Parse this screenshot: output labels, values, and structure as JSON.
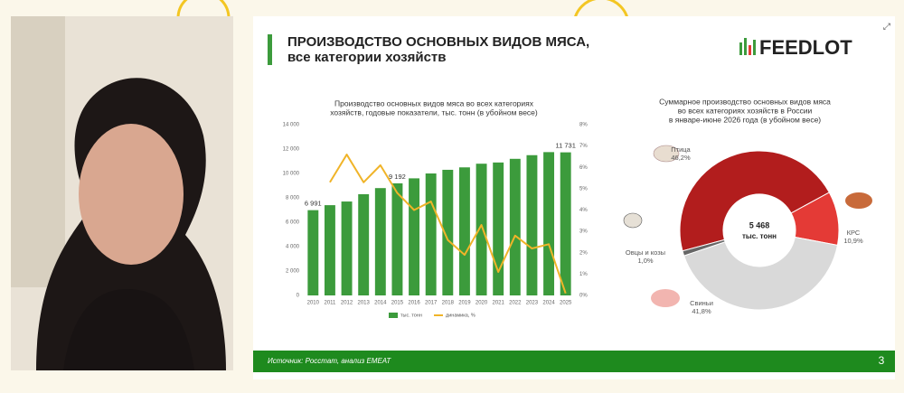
{
  "slide": {
    "title": [
      "ПРОИЗВОДСТВО ОСНОВНЫХ ВИДОВ МЯСА,",
      "все категории хозяйств"
    ],
    "logo": "FEEDLOT",
    "source": "Источник: Росстат, анализ ЕМЕАТ",
    "page": "3"
  },
  "chart_data": [
    {
      "type": "bar",
      "title": [
        "Производство основных видов мяса во всех категориях",
        "хозяйств, годовые показатели, тыс. тонн (в убойном весе)"
      ],
      "categories": [
        "2010",
        "2011",
        "2012",
        "2013",
        "2014",
        "2015",
        "2016",
        "2017",
        "2018",
        "2019",
        "2020",
        "2021",
        "2022",
        "2023",
        "2024",
        "2025"
      ],
      "series": [
        {
          "name": "тыс. тонн",
          "color": "#3c9b3c",
          "values": [
            6991,
            7400,
            7700,
            8300,
            8800,
            9192,
            9600,
            10000,
            10300,
            10500,
            10800,
            10900,
            11200,
            11500,
            11750,
            11731
          ],
          "value_labels": [
            "6 991",
            null,
            null,
            null,
            null,
            "9 192",
            null,
            null,
            null,
            null,
            null,
            null,
            null,
            null,
            null,
            "11 731"
          ]
        },
        {
          "name": "динамика, %",
          "color": "#f0b429",
          "type": "line",
          "axis": "y2",
          "values": [
            null,
            5.3,
            6.6,
            5.3,
            6.1,
            4.8,
            4.0,
            4.4,
            2.6,
            1.9,
            3.3,
            1.1,
            2.8,
            2.2,
            2.4,
            0.1
          ]
        }
      ],
      "ylim": [
        0,
        14000
      ],
      "yticks": [
        0,
        {
          "value": 2000,
          "label": "2 000"
        },
        {
          "value": 4000,
          "label": "4 000"
        },
        {
          "value": 6000,
          "label": "6 000"
        },
        {
          "value": 8000,
          "label": "8 000"
        },
        {
          "value": 10000,
          "label": "10 000"
        },
        {
          "value": 12000,
          "label": "12 000"
        },
        {
          "value": 14000,
          "label": "14 000"
        }
      ],
      "y2lim": [
        0,
        8
      ],
      "y2ticks": [
        {
          "value": 0,
          "label": "0%"
        },
        {
          "value": 1,
          "label": "1%"
        },
        {
          "value": 2,
          "label": "2%"
        },
        {
          "value": 3,
          "label": "3%"
        },
        {
          "value": 4,
          "label": "4%"
        },
        {
          "value": 5,
          "label": "5%"
        },
        {
          "value": 6,
          "label": "6%"
        },
        {
          "value": 7,
          "label": "7%"
        },
        {
          "value": 8,
          "label": "8%"
        }
      ],
      "legend": "bottom"
    },
    {
      "type": "pie",
      "title": [
        "Суммарное производство основных видов мяса",
        "во всех категориях хозяйств в России",
        "в январе-июне 2026 года (в убойном весе)"
      ],
      "categories": [
        "Птица",
        "КРС",
        "Свиньи",
        "Овцы и козы"
      ],
      "values": [
        46.2,
        10.9,
        41.8,
        1.0
      ],
      "value_labels": [
        "46,2%",
        "10,9%",
        "41,8%",
        "1,0%"
      ],
      "colors": [
        "#b21d1d",
        "#e43a36",
        "#d9d9d9",
        "#666666"
      ],
      "total": {
        "value": 5468,
        "label": "5 468"
      },
      "total_unit": "тыс. тонн"
    }
  ]
}
